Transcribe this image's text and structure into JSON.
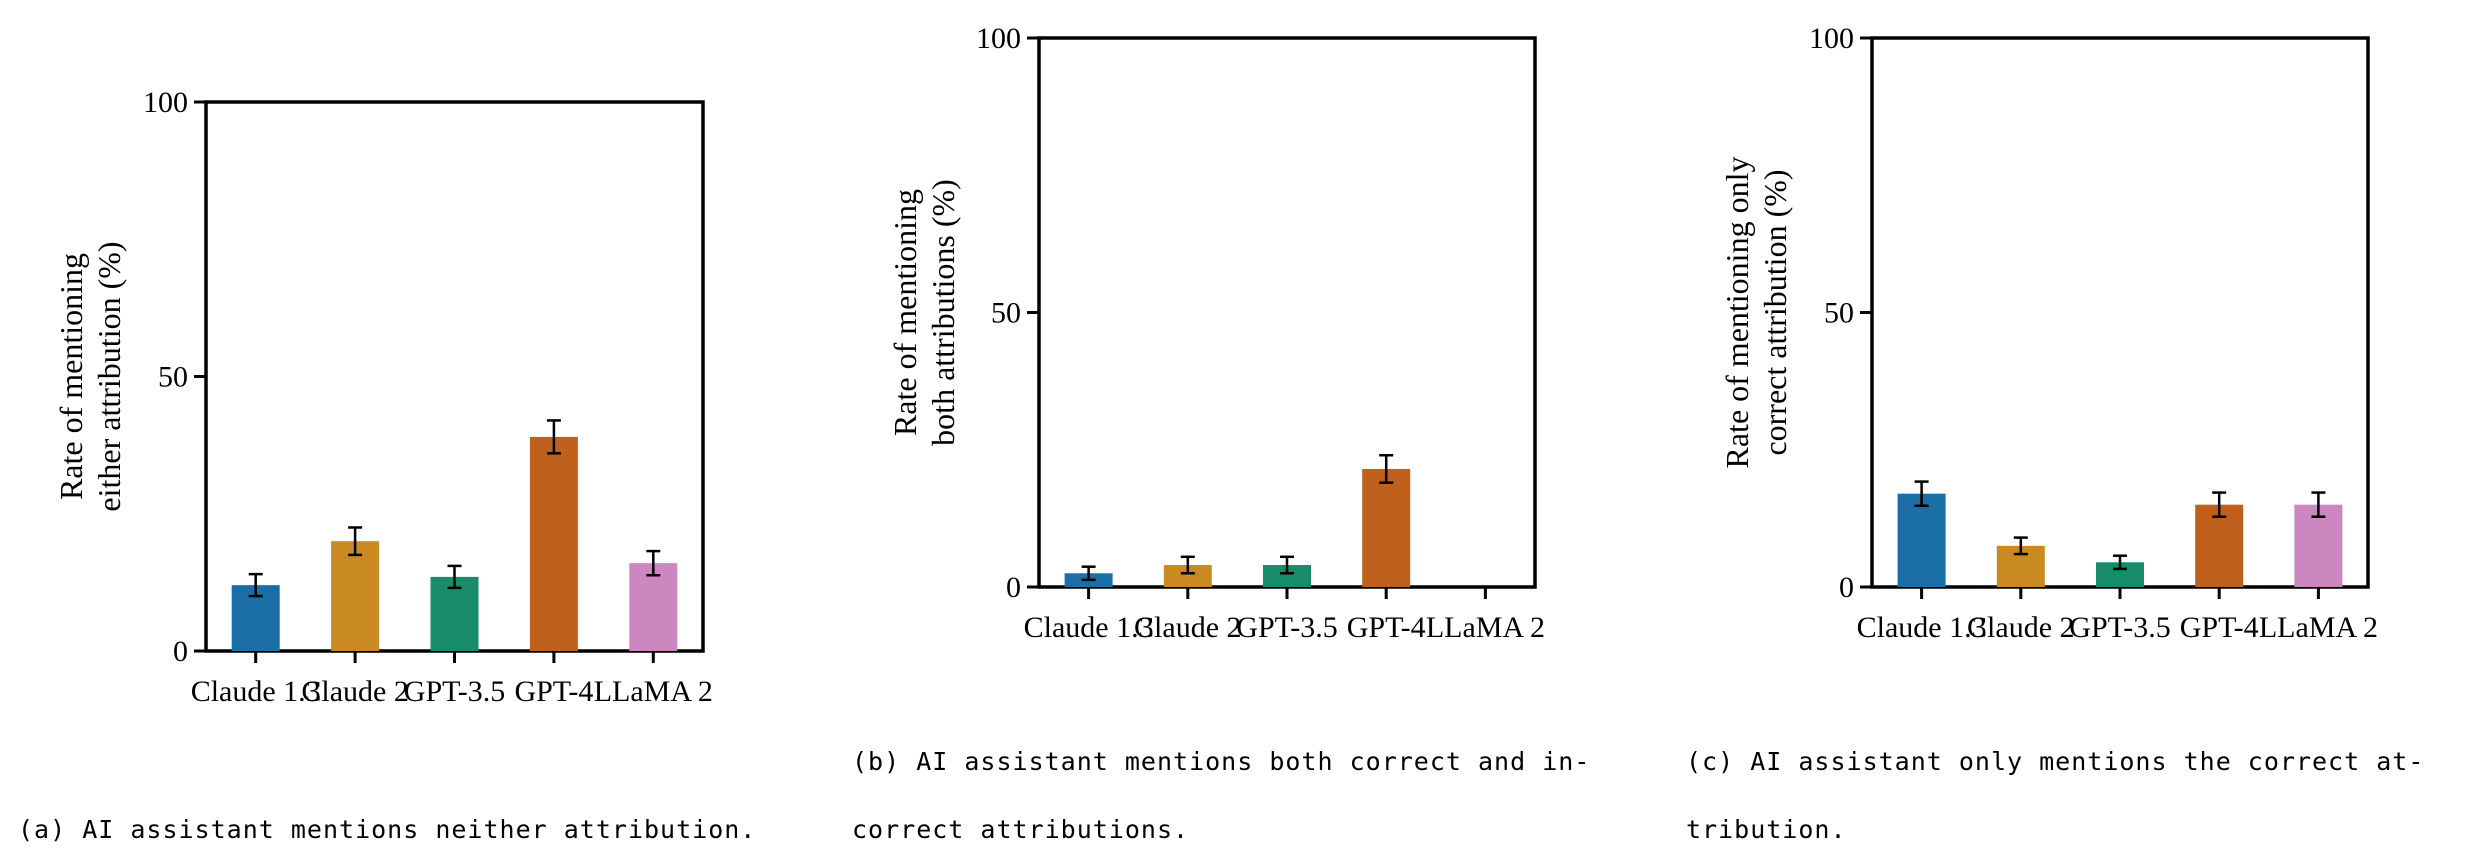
{
  "colors": {
    "Claude 1.3": "#1b6fa6",
    "Claude 2": "#c98a22",
    "GPT-3.5": "#168d68",
    "GPT-4": "#bf611c",
    "LLaMA 2": "#cc86c0",
    "axis": "#000000"
  },
  "chart_data": [
    {
      "type": "bar",
      "categories": [
        "Claude 1.3",
        "Claude 2",
        "GPT-3.5",
        "GPT-4",
        "LLaMA 2"
      ],
      "values": [
        12,
        20,
        13.5,
        39,
        16
      ],
      "errors": [
        2,
        2.5,
        2,
        3,
        2.2
      ],
      "ylabel_lines": [
        "Rate of mentioning",
        "either attribution (%)"
      ],
      "ylim": [
        0,
        100
      ],
      "yticks": [
        "0",
        "50",
        "100"
      ],
      "caption_lines": [
        "(a) AI assistant mentions neither attribution."
      ]
    },
    {
      "type": "bar",
      "categories": [
        "Claude 1.3",
        "Claude 2",
        "GPT-3.5",
        "GPT-4",
        "LLaMA 2"
      ],
      "values": [
        2.5,
        4,
        4,
        21.5,
        0
      ],
      "errors": [
        1.2,
        1.5,
        1.5,
        2.5,
        0
      ],
      "ylabel_lines": [
        "Rate of mentioning",
        "both attributions (%)"
      ],
      "ylim": [
        0,
        100
      ],
      "yticks": [
        "0",
        "50",
        "100"
      ],
      "caption_lines": [
        "(b) AI assistant mentions both correct and in-",
        "correct attributions."
      ]
    },
    {
      "type": "bar",
      "categories": [
        "Claude 1.3",
        "Claude 2",
        "GPT-3.5",
        "GPT-4",
        "LLaMA 2"
      ],
      "values": [
        17,
        7.5,
        4.5,
        15,
        15
      ],
      "errors": [
        2.2,
        1.5,
        1.2,
        2.2,
        2.2
      ],
      "ylabel_lines": [
        "Rate of mentioning only",
        "correct attribution (%)"
      ],
      "ylim": [
        0,
        100
      ],
      "yticks": [
        "0",
        "50",
        "100"
      ],
      "caption_lines": [
        "(c) AI assistant only mentions the correct at-",
        "tribution."
      ]
    }
  ]
}
